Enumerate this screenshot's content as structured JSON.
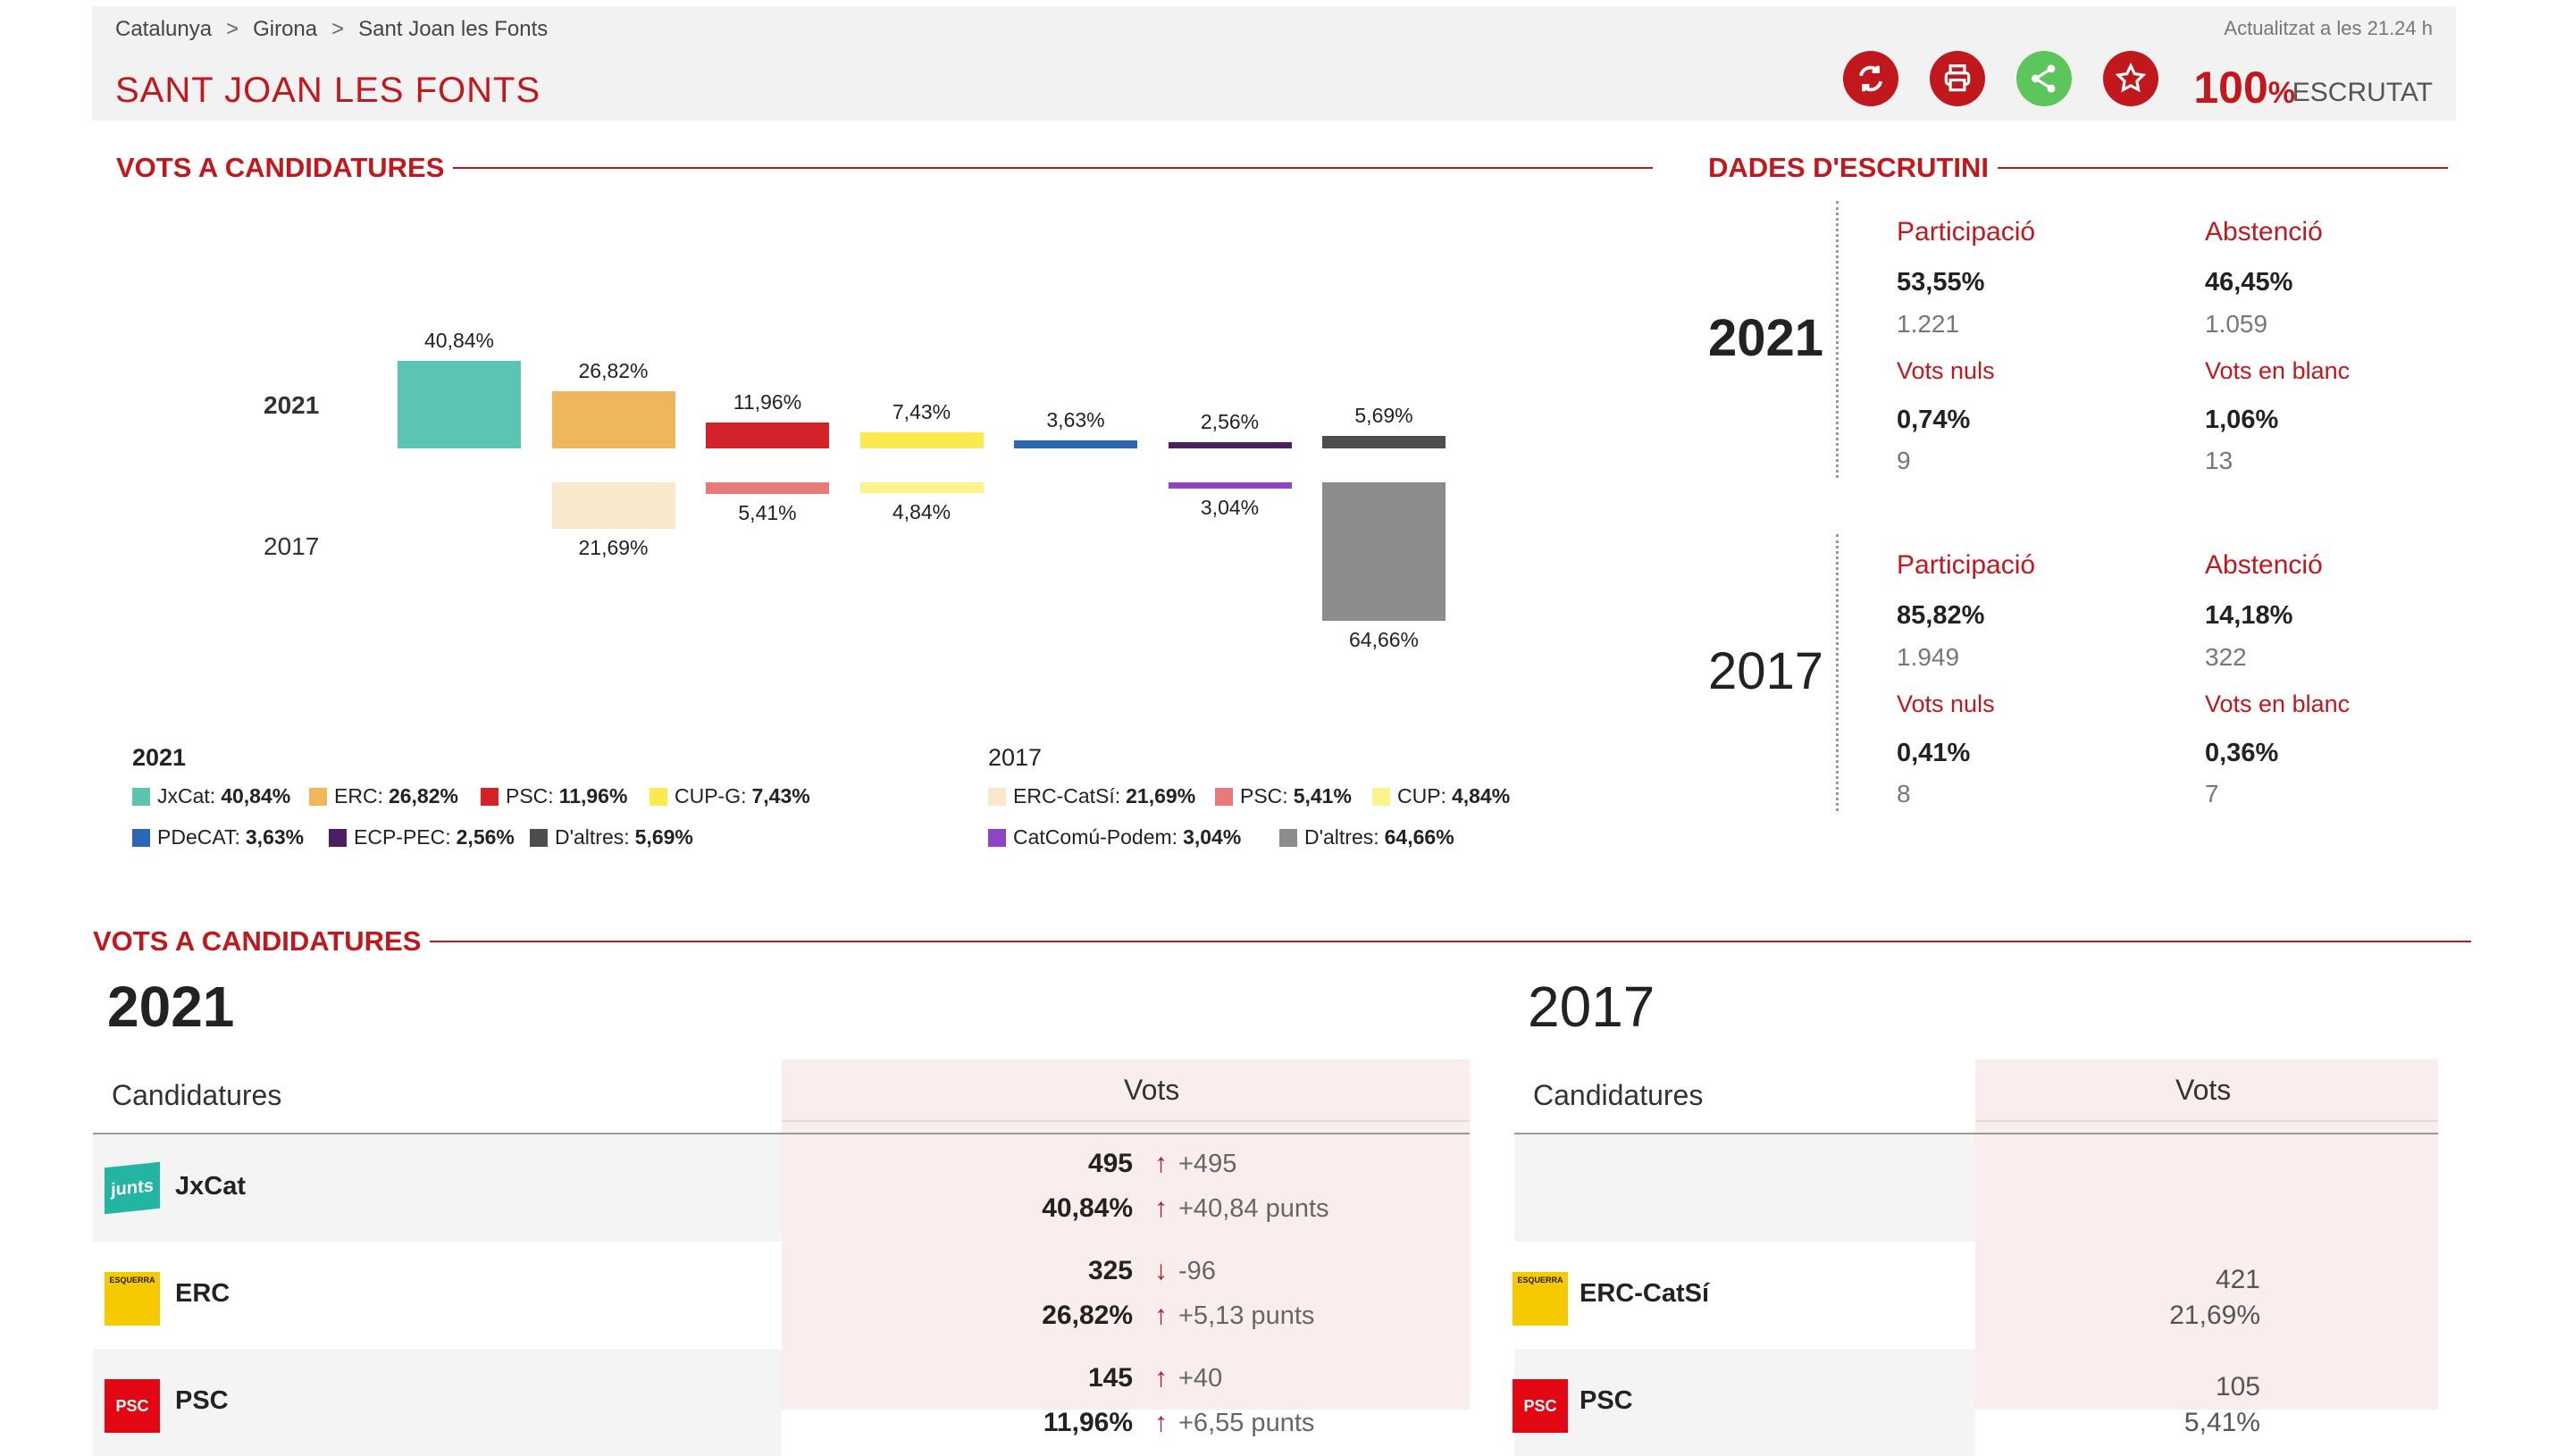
{
  "header": {
    "breadcrumb": [
      "Catalunya",
      "Girona",
      "Sant Joan les Fonts"
    ],
    "updated": "Actualitzat a les 21.24 h",
    "town": "SANT JOAN LES FONTS",
    "scrutiny_pct": "100",
    "pct_sign": "%",
    "scrutiny_label": "ESCRUTAT"
  },
  "chart_section": {
    "title": "VOTS A CANDIDATURES",
    "year_a": "2021",
    "year_b": "2017"
  },
  "chart_data": {
    "type": "bar",
    "title": "VOTS A CANDIDATURES",
    "series": [
      {
        "name": "2021",
        "values": [
          40.84,
          26.82,
          11.96,
          7.43,
          3.63,
          2.56,
          5.69
        ],
        "labels": [
          "40,84%",
          "26,82%",
          "11,96%",
          "7,43%",
          "3,63%",
          "2,56%",
          "5,69%"
        ],
        "colors": [
          "#5bc5b2",
          "#efb75c",
          "#d2232a",
          "#fce94f",
          "#2b67b2",
          "#4a2060",
          "#4d4d4d"
        ]
      },
      {
        "name": "2017",
        "values": [
          null,
          21.69,
          5.41,
          4.84,
          null,
          3.04,
          64.66
        ],
        "labels": [
          "",
          "21,69%",
          "5,41%",
          "4,84%",
          "",
          "3,04%",
          "64,66%"
        ],
        "colors": [
          "",
          "#fae8cd",
          "#e87a7a",
          "#fbf48a",
          "",
          "#8e44c4",
          "#8c8c8c"
        ]
      }
    ]
  },
  "legend": {
    "y2021": "2021",
    "y2017": "2017",
    "items2021": [
      {
        "name": "JxCat:",
        "val": "40,84%",
        "color": "#5bc5b2"
      },
      {
        "name": "ERC:",
        "val": "26,82%",
        "color": "#efb75c"
      },
      {
        "name": "PSC:",
        "val": "11,96%",
        "color": "#d2232a"
      },
      {
        "name": "CUP-G:",
        "val": "7,43%",
        "color": "#fce94f"
      },
      {
        "name": "PDeCAT:",
        "val": "3,63%",
        "color": "#2b67b2"
      },
      {
        "name": "ECP-PEC:",
        "val": "2,56%",
        "color": "#4a2060"
      },
      {
        "name": "D'altres:",
        "val": "5,69%",
        "color": "#4d4d4d"
      }
    ],
    "items2017": [
      {
        "name": "ERC-CatSí:",
        "val": "21,69%",
        "color": "#fae8cd"
      },
      {
        "name": "PSC:",
        "val": "5,41%",
        "color": "#e87a7a"
      },
      {
        "name": "CUP:",
        "val": "4,84%",
        "color": "#fbf48a"
      },
      {
        "name": "CatComú-Podem:",
        "val": "3,04%",
        "color": "#8e44c4"
      },
      {
        "name": "D'altres:",
        "val": "64,66%",
        "color": "#8c8c8c"
      }
    ]
  },
  "scrutiny": {
    "title": "DADES D'ESCRUTINI",
    "labels": {
      "part": "Participació",
      "abst": "Abstenció",
      "nuls": "Vots nuls",
      "blanc": "Vots en blanc"
    },
    "y2021": {
      "year": "2021",
      "part": "53,55%",
      "part_n": "1.221",
      "abst": "46,45%",
      "abst_n": "1.059",
      "nuls": "0,74%",
      "nuls_n": "9",
      "blanc": "1,06%",
      "blanc_n": "13"
    },
    "y2017": {
      "year": "2017",
      "part": "85,82%",
      "part_n": "1.949",
      "abst": "14,18%",
      "abst_n": "322",
      "nuls": "0,41%",
      "nuls_n": "8",
      "blanc": "0,36%",
      "blanc_n": "7"
    }
  },
  "table_section": {
    "title": "VOTS A CANDIDATURES",
    "year_a": "2021",
    "year_b": "2017",
    "col_cand": "Candidatures",
    "col_votes": "Vots",
    "rows2021": [
      {
        "name": "JxCat",
        "votes": "495",
        "dvotes": "+495",
        "pct": "40,84%",
        "dpct": "+40,84 punts",
        "arrow_v": "↑",
        "arrow_p": "↑",
        "logo": "junts"
      },
      {
        "name": "ERC",
        "votes": "325",
        "dvotes": "-96",
        "pct": "26,82%",
        "dpct": "+5,13 punts",
        "arrow_v": "↓",
        "arrow_p": "↑",
        "logo": "ESQUERRA"
      },
      {
        "name": "PSC",
        "votes": "145",
        "dvotes": "+40",
        "pct": "11,96%",
        "dpct": "+6,55 punts",
        "arrow_v": "↑",
        "arrow_p": "↑",
        "logo": "PSC"
      }
    ],
    "rows2017": [
      {
        "name": "",
        "votes": "",
        "pct": ""
      },
      {
        "name": "ERC-CatSí",
        "votes": "421",
        "pct": "21,69%",
        "logo": "ESQUERRA"
      },
      {
        "name": "PSC",
        "votes": "105",
        "pct": "5,41%",
        "logo": "PSC"
      }
    ]
  }
}
